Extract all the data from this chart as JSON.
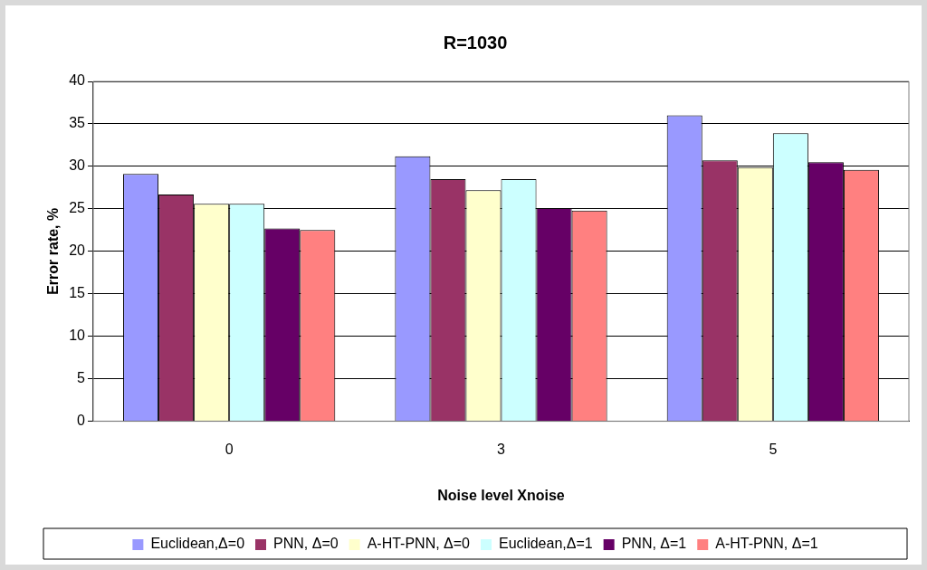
{
  "chart_data": {
    "type": "bar",
    "title": "R=1030",
    "xlabel": "Noise level Xnoise",
    "ylabel": "Error rate, %",
    "categories": [
      "0",
      "3",
      "5"
    ],
    "series": [
      {
        "name": "Euclidean,Δ=0",
        "color": "#9999ff",
        "values": [
          29.1,
          31.2,
          36.0
        ]
      },
      {
        "name": "PNN, Δ=0",
        "color": "#993366",
        "values": [
          26.7,
          28.5,
          30.7
        ]
      },
      {
        "name": "A-HT-PNN, Δ=0",
        "color": "#ffffcc",
        "values": [
          25.6,
          27.2,
          29.9
        ]
      },
      {
        "name": "Euclidean,Δ=1",
        "color": "#ccffff",
        "values": [
          25.6,
          28.5,
          33.9
        ]
      },
      {
        "name": "PNN, Δ=1",
        "color": "#660066",
        "values": [
          22.7,
          25.1,
          30.5
        ]
      },
      {
        "name": "A-HT-PNN, Δ=1",
        "color": "#ff8080",
        "values": [
          22.5,
          24.8,
          29.6
        ]
      }
    ],
    "ylim": [
      0,
      40
    ],
    "yticks": [
      0,
      5,
      10,
      15,
      20,
      25,
      30,
      35,
      40
    ],
    "grid": "y",
    "legend": "bottom"
  }
}
